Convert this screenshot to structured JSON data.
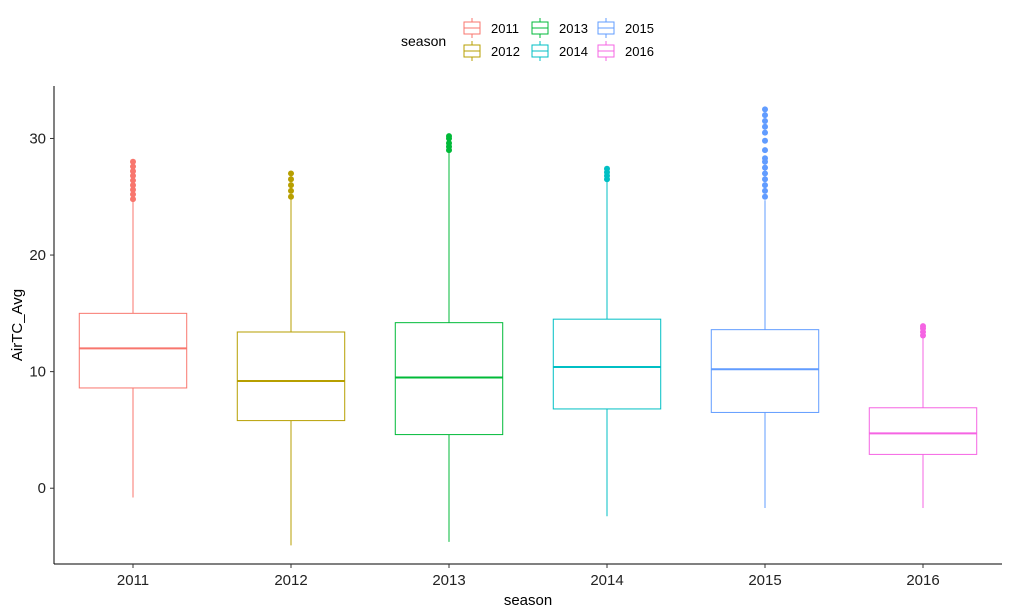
{
  "chart_data": {
    "type": "boxplot",
    "xlabel": "season",
    "ylabel": "AirTC_Avg",
    "ylim": [
      -6.5,
      34.5
    ],
    "yticks": [
      0,
      10,
      20,
      30
    ],
    "grid": false,
    "legend": {
      "title": "season",
      "placement": "top",
      "entries": [
        "2011",
        "2012",
        "2013",
        "2014",
        "2015",
        "2016"
      ]
    },
    "categories": [
      "2011",
      "2012",
      "2013",
      "2014",
      "2015",
      "2016"
    ],
    "series": [
      {
        "name": "2011",
        "color": "#F8766D",
        "min": -0.8,
        "q1": 8.6,
        "median": 12.0,
        "q3": 15.0,
        "max": 24.6,
        "outliers": [
          24.8,
          25.2,
          25.6,
          26.0,
          26.4,
          26.8,
          27.2,
          27.6,
          28.0
        ]
      },
      {
        "name": "2012",
        "color": "#B79F00",
        "min": -4.9,
        "q1": 5.8,
        "median": 9.2,
        "q3": 13.4,
        "max": 24.8,
        "outliers": [
          25.0,
          25.5,
          26.0,
          26.5,
          27.0
        ]
      },
      {
        "name": "2013",
        "color": "#00BA38",
        "min": -4.6,
        "q1": 4.6,
        "median": 9.5,
        "q3": 14.2,
        "max": 28.8,
        "outliers": [
          29.0,
          29.3,
          29.6,
          30.0,
          30.2
        ]
      },
      {
        "name": "2014",
        "color": "#00BFC4",
        "min": -2.4,
        "q1": 6.8,
        "median": 10.4,
        "q3": 14.5,
        "max": 26.3,
        "outliers": [
          26.5,
          26.8,
          27.1,
          27.4
        ]
      },
      {
        "name": "2015",
        "color": "#619CFF",
        "min": -1.7,
        "q1": 6.5,
        "median": 10.2,
        "q3": 13.6,
        "max": 24.7,
        "outliers": [
          25.0,
          25.5,
          26.0,
          26.5,
          27.0,
          27.5,
          28.0,
          28.3,
          29.0,
          29.8,
          30.5,
          31.0,
          31.5,
          32.0,
          32.5
        ]
      },
      {
        "name": "2016",
        "color": "#F564E3",
        "min": -1.7,
        "q1": 2.9,
        "median": 4.7,
        "q3": 6.9,
        "max": 12.9,
        "outliers": [
          13.1,
          13.4,
          13.7,
          13.9
        ]
      }
    ]
  }
}
